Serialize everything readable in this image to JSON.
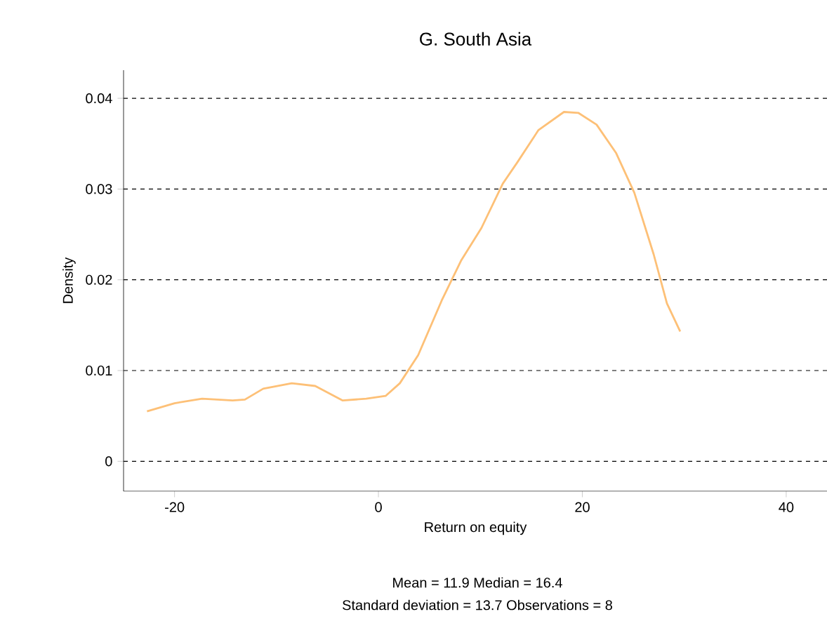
{
  "chart_data": {
    "type": "line",
    "title": "G. South Asia",
    "xlabel": "Return on equity",
    "ylabel": "Density",
    "x": [
      -22.7,
      -20,
      -17.3,
      -14.3,
      -13.1,
      -11.3,
      -8.5,
      -6.2,
      -3.5,
      -1.2,
      0.7,
      2.1,
      3.9,
      6.2,
      8.1,
      10.1,
      12.2,
      13.6,
      15.7,
      18.2,
      19.6,
      21.4,
      23.3,
      25.1,
      27.0,
      28.3,
      29.6
    ],
    "series": [
      {
        "color": "#fdc077",
        "values": [
          0.0055,
          0.0064,
          0.0069,
          0.0067,
          0.0068,
          0.008,
          0.0086,
          0.0083,
          0.0067,
          0.0069,
          0.0072,
          0.0086,
          0.0117,
          0.0177,
          0.0221,
          0.0257,
          0.0306,
          0.0329,
          0.0365,
          0.0385,
          0.0384,
          0.0371,
          0.034,
          0.0296,
          0.0228,
          0.0174,
          0.0143
        ]
      }
    ],
    "xlim": [
      -25,
      44
    ],
    "ylim": [
      -0.0033,
      0.0431
    ],
    "xticks": [
      -20,
      0,
      20,
      40
    ],
    "yticks": [
      0,
      0.01,
      0.02,
      0.03,
      0.04
    ],
    "grid": "y",
    "marker": "none",
    "line_style": "solid",
    "annotations": [
      "Mean = 11.9     Median = 16.4",
      "Standard deviation = 13.7     Observations = 8"
    ]
  }
}
